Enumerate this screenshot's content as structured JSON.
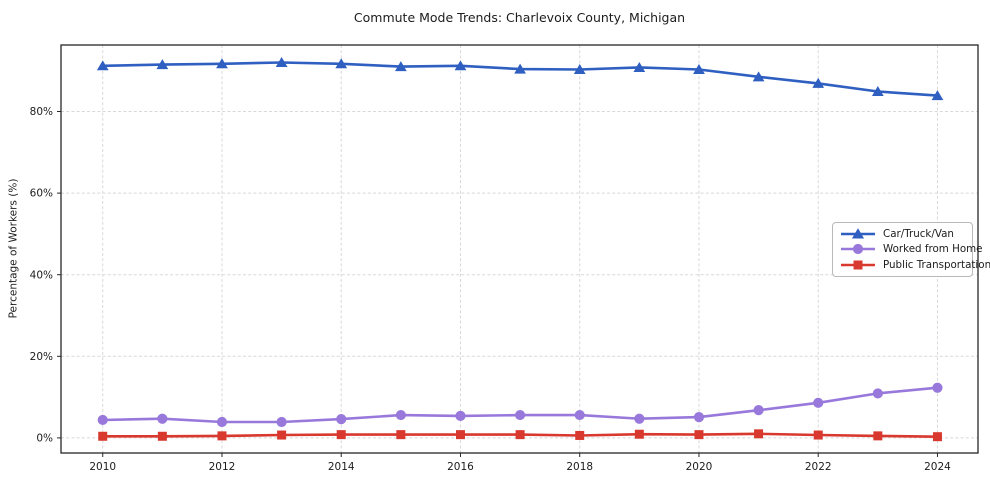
{
  "chart_data": {
    "type": "line",
    "title": "Commute Mode Trends: Charlevoix County, Michigan",
    "xlabel": "",
    "ylabel": "Percentage of Workers (%)",
    "x": [
      2010,
      2011,
      2012,
      2013,
      2014,
      2015,
      2016,
      2017,
      2018,
      2019,
      2020,
      2021,
      2022,
      2023,
      2024
    ],
    "series": [
      {
        "name": "Car/Truck/Van",
        "color": "#2f5fc1",
        "marker": "triangle",
        "values": [
          91.2,
          91.5,
          91.7,
          92.0,
          91.7,
          91.0,
          91.2,
          90.4,
          90.3,
          90.8,
          90.3,
          88.5,
          86.9,
          84.9,
          83.9
        ]
      },
      {
        "name": "Worked from Home",
        "color": "#9879db",
        "marker": "circle",
        "values": [
          4.4,
          4.7,
          3.9,
          3.9,
          4.6,
          5.6,
          5.4,
          5.6,
          5.6,
          4.7,
          5.1,
          6.8,
          8.6,
          10.9,
          12.3
        ]
      },
      {
        "name": "Public Transportation",
        "color": "#d9382f",
        "marker": "square",
        "values": [
          0.4,
          0.4,
          0.5,
          0.7,
          0.8,
          0.8,
          0.8,
          0.8,
          0.6,
          0.9,
          0.8,
          1.0,
          0.7,
          0.5,
          0.3
        ]
      }
    ],
    "x_ticks": [
      2010,
      2012,
      2014,
      2016,
      2018,
      2020,
      2022,
      2024
    ],
    "x_tick_labels": [
      "2010",
      "2012",
      "2014",
      "2016",
      "2018",
      "2020",
      "2022",
      "2024"
    ],
    "y_ticks": [
      0,
      20,
      40,
      60,
      80
    ],
    "y_tick_labels": [
      "0%",
      "20%",
      "40%",
      "60%",
      "80%"
    ],
    "xlim": [
      2009.3,
      2024.68
    ],
    "ylim": [
      -3.7,
      96.3
    ],
    "grid": true,
    "legend_position": "center-right"
  }
}
